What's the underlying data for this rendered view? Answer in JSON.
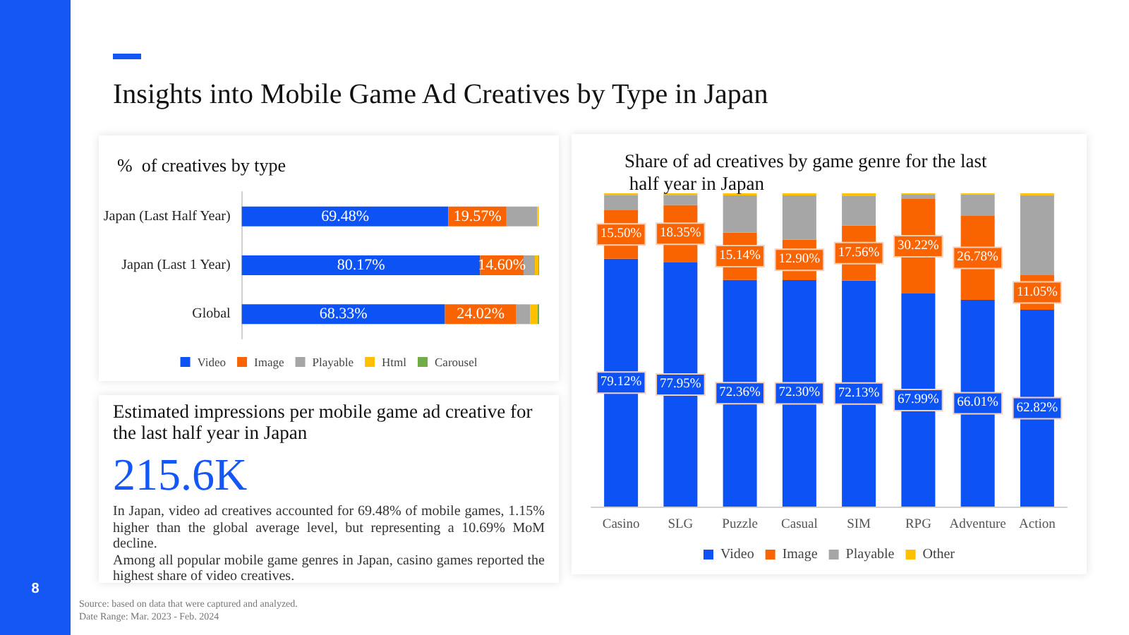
{
  "chart_data": [
    {
      "type": "other",
      "title": "Insights into Mobile Game Ad Creatives by Type in Japan",
      "annotations": [
        "8",
        "Source: based on data that were captured and analyzed.",
        "Date Range: Mar. 2023 - Feb. 2024"
      ]
    },
    {
      "type": "bar",
      "title": "%  of creatives by type",
      "orientation": "horizontal",
      "stacked": true,
      "categories": [
        "Japan (Last Half Year)",
        "Japan (Last 1 Year)",
        "Global"
      ],
      "xlim": [
        0,
        100
      ],
      "tick_labels": "y",
      "legend": "bottom",
      "series": [
        {
          "name": "Video",
          "color": "#0d52f5",
          "values": [
            69.48,
            80.17,
            68.33
          ],
          "value_labels": [
            "69.48%",
            "80.17%",
            "68.33%"
          ]
        },
        {
          "name": "Image",
          "color": "#fa6400",
          "values": [
            19.57,
            14.6,
            24.02
          ],
          "value_labels": [
            "19.57%",
            "14.60%",
            "24.02%"
          ]
        },
        {
          "name": "Playable",
          "color": "#a6a6a6",
          "values": [
            10.3,
            3.8,
            4.7
          ]
        },
        {
          "name": "Html",
          "color": "#ffc000",
          "values": [
            0.55,
            1.2,
            2.4
          ]
        },
        {
          "name": "Carousel",
          "color": "#70ad47",
          "values": [
            null,
            0.23,
            0.55
          ]
        }
      ]
    },
    {
      "type": "other",
      "title": "Estimated impressions per mobile game ad creative for the last half year in Japan",
      "annotations": [
        "215.6K",
        "In Japan, video ad creatives accounted for 69.48% of mobile games, 1.15% higher than the global average level, but representing a 10.69% MoM decline.",
        "Among all popular mobile game genres in Japan, casino games reported the highest share of video creatives."
      ]
    },
    {
      "type": "bar",
      "title": "Share of ad creatives by game genre for the last half year in Japan",
      "stacked": true,
      "categories": [
        "Casino",
        "SLG",
        "Puzzle",
        "Casual",
        "SIM",
        "RPG",
        "Adventure",
        "Action"
      ],
      "ylim": [
        0,
        100
      ],
      "tick_labels": "x",
      "legend": "bottom",
      "series": [
        {
          "name": "Video",
          "color": "#0d52f5",
          "values": [
            79.12,
            77.95,
            72.36,
            72.3,
            72.13,
            67.99,
            66.01,
            62.82
          ],
          "value_labels": [
            "79.12%",
            "77.95%",
            "72.36%",
            "72.30%",
            "72.13%",
            "67.99%",
            "66.01%",
            "62.82%"
          ]
        },
        {
          "name": "Image",
          "color": "#fa6400",
          "values": [
            15.5,
            18.35,
            15.14,
            12.9,
            17.56,
            30.22,
            26.78,
            11.05
          ],
          "value_labels": [
            "15.50%",
            "18.35%",
            "15.14%",
            "12.90%",
            "17.56%",
            "30.22%",
            "26.78%",
            "11.05%"
          ]
        },
        {
          "name": "Playable",
          "color": "#a6a6a6",
          "values": [
            4.88,
            3.2,
            11.8,
            14.1,
            9.6,
            1.49,
            6.9,
            25.5
          ]
        },
        {
          "name": "Other",
          "color": "#ffc000",
          "values": [
            0.5,
            0.5,
            0.7,
            0.7,
            0.71,
            0.3,
            0.31,
            0.63
          ]
        }
      ]
    }
  ]
}
